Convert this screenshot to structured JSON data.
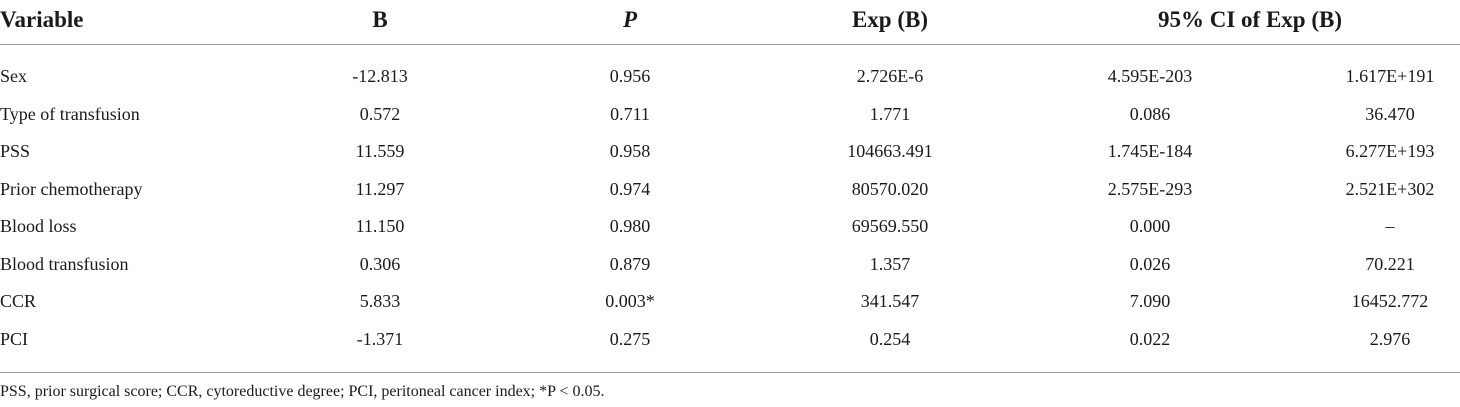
{
  "headers": {
    "variable": "Variable",
    "b": "B",
    "p": "P",
    "exp": "Exp (B)",
    "ci": "95% CI of Exp (B)"
  },
  "rows": [
    {
      "variable": "Sex",
      "b": "-12.813",
      "p": "0.956",
      "exp": "2.726E-6",
      "ci_low": "4.595E-203",
      "ci_high": "1.617E+191"
    },
    {
      "variable": "Type of transfusion",
      "b": "0.572",
      "p": "0.711",
      "exp": "1.771",
      "ci_low": "0.086",
      "ci_high": "36.470"
    },
    {
      "variable": "PSS",
      "b": "11.559",
      "p": "0.958",
      "exp": "104663.491",
      "ci_low": "1.745E-184",
      "ci_high": "6.277E+193"
    },
    {
      "variable": "Prior chemotherapy",
      "b": "11.297",
      "p": "0.974",
      "exp": "80570.020",
      "ci_low": "2.575E-293",
      "ci_high": "2.521E+302"
    },
    {
      "variable": "Blood loss",
      "b": "11.150",
      "p": "0.980",
      "exp": "69569.550",
      "ci_low": "0.000",
      "ci_high": "–"
    },
    {
      "variable": "Blood transfusion",
      "b": "0.306",
      "p": "0.879",
      "exp": "1.357",
      "ci_low": "0.026",
      "ci_high": "70.221"
    },
    {
      "variable": "CCR",
      "b": "5.833",
      "p": "0.003*",
      "exp": "341.547",
      "ci_low": "7.090",
      "ci_high": "16452.772"
    },
    {
      "variable": "PCI",
      "b": "-1.371",
      "p": "0.275",
      "exp": "0.254",
      "ci_low": "0.022",
      "ci_high": "2.976"
    }
  ],
  "footnote": "PSS, prior surgical score; CCR, cytoreductive degree; PCI, peritoneal cancer index; *P < 0.05."
}
